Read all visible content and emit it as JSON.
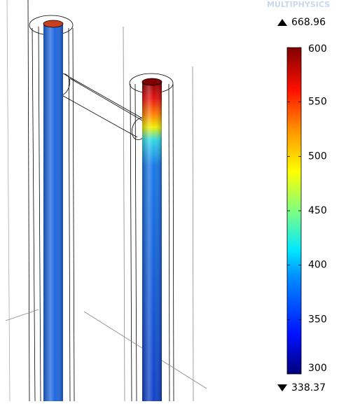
{
  "watermark": "MULTIPHYSICS",
  "max_value": 668.96,
  "min_value": 338.37,
  "colorbar": {
    "lim": [
      300,
      600
    ],
    "ticks": [
      300,
      350,
      400,
      450,
      500,
      550,
      600
    ]
  }
}
